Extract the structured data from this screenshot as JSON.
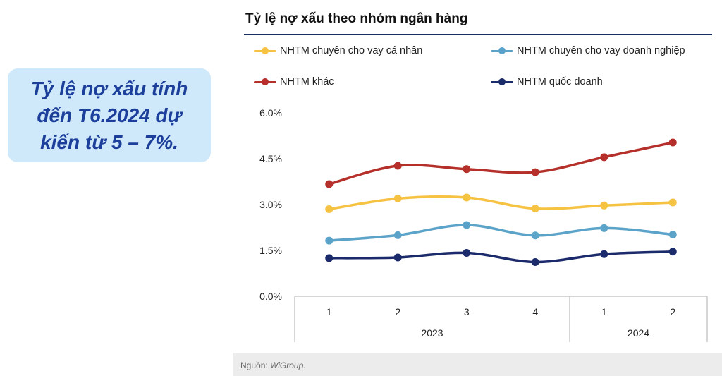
{
  "callout": {
    "text": "Tỷ lệ  nợ xấu tính đến T6.2024 dự kiến từ 5 – 7%."
  },
  "source": {
    "label": "Nguồn: ",
    "name": "WiGroup."
  },
  "chart_data": {
    "type": "line",
    "title": "Tỷ lệ nợ xấu theo nhóm ngân hàng",
    "categories": [
      "1",
      "2",
      "3",
      "4",
      "1",
      "2"
    ],
    "groups": [
      {
        "label": "2023",
        "count": 4
      },
      {
        "label": "2024",
        "count": 2
      }
    ],
    "y_ticks": [
      "6.0%",
      "4.5%",
      "3.0%",
      "1.5%",
      "0.0%"
    ],
    "ylim": [
      0,
      6
    ],
    "legend_position": "top",
    "series": [
      {
        "name": "NHTM chuyên cho vay cá nhân",
        "color": "#f5c242",
        "values": [
          2.85,
          3.2,
          3.23,
          2.87,
          2.97,
          3.07
        ]
      },
      {
        "name": "NHTM chuyên cho vay doanh nghiệp",
        "color": "#5ba3c9",
        "values": [
          1.82,
          2.0,
          2.33,
          1.99,
          2.23,
          2.02
        ]
      },
      {
        "name": "NHTM khác",
        "color": "#b5302a",
        "values": [
          3.67,
          4.27,
          4.16,
          4.06,
          4.55,
          5.03
        ]
      },
      {
        "name": "NHTM quốc doanh",
        "color": "#1b2a6b",
        "values": [
          1.25,
          1.27,
          1.42,
          1.12,
          1.38,
          1.46
        ]
      }
    ]
  }
}
